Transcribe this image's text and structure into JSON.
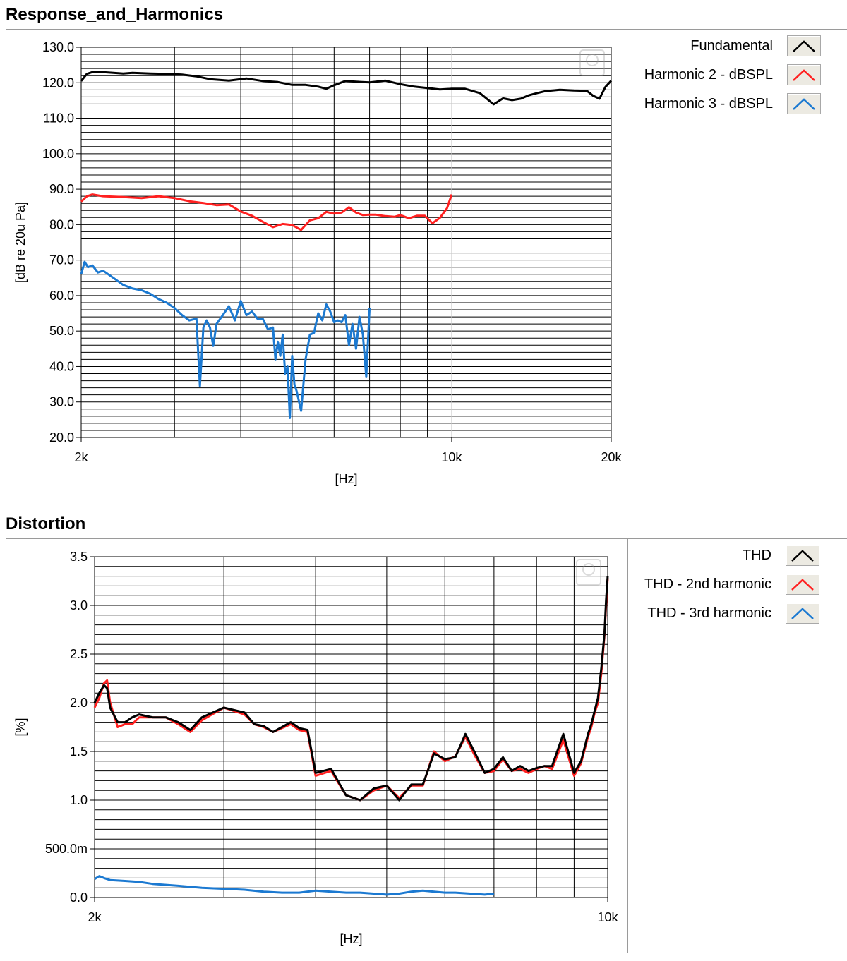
{
  "panels": [
    {
      "title": "Response_and_Harmonics"
    },
    {
      "title": "Distortion"
    }
  ],
  "chart_data": [
    {
      "type": "line",
      "x_scale": "log",
      "xlim": [
        2000,
        20000
      ],
      "ylim": [
        20,
        130
      ],
      "xlabel": "[Hz]",
      "ylabel": "[dB re 20u Pa]",
      "xticks": [
        {
          "v": 2000,
          "label": "2k"
        },
        {
          "v": 10000,
          "label": "10k"
        },
        {
          "v": 20000,
          "label": "20k"
        }
      ],
      "yticks": [
        {
          "v": 130,
          "label": "130.0"
        },
        {
          "v": 120,
          "label": "120.0"
        },
        {
          "v": 110,
          "label": "110.0"
        },
        {
          "v": 100,
          "label": "100.0"
        },
        {
          "v": 90,
          "label": "90.0"
        },
        {
          "v": 80,
          "label": "80.0"
        },
        {
          "v": 70,
          "label": "70.0"
        },
        {
          "v": 60,
          "label": "60.0"
        },
        {
          "v": 50,
          "label": "50.0"
        },
        {
          "v": 40,
          "label": "40.0"
        },
        {
          "v": 30,
          "label": "30.0"
        },
        {
          "v": 20,
          "label": "20.0"
        }
      ],
      "ygrid_step": 2,
      "legend_position": "right",
      "series": [
        {
          "name": "Fundamental",
          "color": "#000000",
          "x": [
            2000,
            2050,
            2100,
            2200,
            2300,
            2400,
            2500,
            2700,
            2900,
            3100,
            3300,
            3500,
            3800,
            4100,
            4400,
            4700,
            5000,
            5300,
            5600,
            5800,
            6000,
            6300,
            6600,
            7000,
            7500,
            8000,
            8500,
            9000,
            9500,
            10000,
            10600,
            11300,
            12000,
            12500,
            13000,
            13500,
            14000,
            14500,
            15000,
            16000,
            17000,
            18000,
            18500,
            19000,
            19500,
            20000
          ],
          "y": [
            120.5,
            122.5,
            123,
            123,
            122.8,
            122.6,
            122.8,
            122.6,
            122.5,
            122.3,
            121.8,
            121,
            120.6,
            121.2,
            120.5,
            120.2,
            119.4,
            119.4,
            118.9,
            118.3,
            119.3,
            120.5,
            120.3,
            120.1,
            120.6,
            119.6,
            118.9,
            118.5,
            118.1,
            118.3,
            118.3,
            117.1,
            113.9,
            115.6,
            115.1,
            115.5,
            116.5,
            117.1,
            117.6,
            118,
            117.8,
            117.7,
            116.3,
            115.5,
            118.8,
            120.6
          ]
        },
        {
          "name": "Harmonic 2 - dBSPL",
          "color": "#ff2020",
          "x": [
            2000,
            2050,
            2100,
            2200,
            2400,
            2600,
            2800,
            3000,
            3200,
            3400,
            3600,
            3800,
            4000,
            4200,
            4400,
            4600,
            4800,
            5000,
            5200,
            5400,
            5600,
            5800,
            6000,
            6200,
            6400,
            6600,
            6800,
            7000,
            7200,
            7500,
            7800,
            8000,
            8300,
            8600,
            8900,
            9200,
            9500,
            9800,
            10000
          ],
          "y": [
            86.5,
            88,
            88.5,
            88,
            87.8,
            87.5,
            88,
            87.5,
            86.6,
            86.1,
            85.5,
            85.7,
            83.7,
            82.5,
            80.8,
            79.3,
            80.2,
            79.9,
            78.5,
            81.2,
            81.8,
            83.6,
            83.1,
            83.4,
            84.9,
            83.4,
            82.7,
            82.8,
            82.8,
            82.4,
            82.2,
            82.7,
            81.8,
            82.5,
            82.5,
            80.4,
            81.9,
            84.6,
            88.5
          ]
        },
        {
          "name": "Harmonic 3 - dBSPL",
          "color": "#1b79d1",
          "x": [
            2000,
            2030,
            2060,
            2100,
            2150,
            2200,
            2300,
            2400,
            2500,
            2600,
            2700,
            2800,
            2900,
            3000,
            3100,
            3200,
            3300,
            3350,
            3400,
            3450,
            3500,
            3550,
            3600,
            3700,
            3800,
            3900,
            4000,
            4100,
            4200,
            4300,
            4400,
            4500,
            4600,
            4650,
            4700,
            4750,
            4800,
            4850,
            4900,
            4950,
            5000,
            5050,
            5100,
            5200,
            5300,
            5400,
            5500,
            5600,
            5700,
            5800,
            5900,
            6000,
            6100,
            6200,
            6300,
            6400,
            6500,
            6600,
            6700,
            6800,
            6900,
            7000
          ],
          "y": [
            66,
            69.5,
            68,
            68.5,
            66.5,
            67,
            65,
            63,
            62,
            61.5,
            60.5,
            59,
            58,
            56.5,
            54.5,
            53,
            53.5,
            34.5,
            51,
            53,
            51,
            45.8,
            52,
            54.5,
            57,
            53,
            58.5,
            54.5,
            55.5,
            53.5,
            53.5,
            50.5,
            51,
            42,
            47,
            43,
            49,
            38,
            40,
            25.5,
            43,
            35,
            33,
            27.5,
            42,
            49,
            49.5,
            55,
            53,
            57.5,
            55.5,
            52.5,
            53,
            52.5,
            54.5,
            46,
            52,
            45,
            54,
            49,
            37,
            56.5
          ]
        }
      ]
    },
    {
      "type": "line",
      "x_scale": "log",
      "xlim": [
        2000,
        10000
      ],
      "ylim": [
        0,
        3.5
      ],
      "xlabel": "[Hz]",
      "ylabel": "[%]",
      "xticks": [
        {
          "v": 2000,
          "label": "2k"
        },
        {
          "v": 10000,
          "label": "10k"
        }
      ],
      "yticks": [
        {
          "v": 3.5,
          "label": "3.5"
        },
        {
          "v": 3.0,
          "label": "3.0"
        },
        {
          "v": 2.5,
          "label": "2.5"
        },
        {
          "v": 2.0,
          "label": "2.0"
        },
        {
          "v": 1.5,
          "label": "1.5"
        },
        {
          "v": 1.0,
          "label": "1.0"
        },
        {
          "v": 0.5,
          "label": "500.0m"
        },
        {
          "v": 0,
          "label": "0.0"
        }
      ],
      "ygrid_step": 0.1,
      "legend_position": "right",
      "series": [
        {
          "name": "THD - 2nd harmonic",
          "color": "#ff2020",
          "x": [
            2000,
            2030,
            2060,
            2080,
            2100,
            2150,
            2200,
            2250,
            2300,
            2400,
            2500,
            2600,
            2700,
            2800,
            3000,
            3200,
            3300,
            3400,
            3500,
            3700,
            3800,
            3900,
            4000,
            4200,
            4400,
            4600,
            4800,
            5000,
            5200,
            5400,
            5600,
            5800,
            6000,
            6200,
            6400,
            6600,
            6800,
            7000,
            7200,
            7400,
            7600,
            7800,
            8000,
            8200,
            8400,
            8700,
            9000,
            9200,
            9400,
            9500,
            9600,
            9700,
            9800,
            9900,
            9950,
            10000
          ],
          "y": [
            1.95,
            2.05,
            2.2,
            2.23,
            2.0,
            1.75,
            1.78,
            1.78,
            1.85,
            1.85,
            1.85,
            1.78,
            1.7,
            1.82,
            1.95,
            1.88,
            1.78,
            1.75,
            1.7,
            1.78,
            1.72,
            1.7,
            1.25,
            1.3,
            1.05,
            1.0,
            1.1,
            1.15,
            1.02,
            1.15,
            1.15,
            1.5,
            1.4,
            1.45,
            1.65,
            1.45,
            1.28,
            1.3,
            1.42,
            1.3,
            1.32,
            1.28,
            1.32,
            1.35,
            1.32,
            1.62,
            1.25,
            1.38,
            1.65,
            1.75,
            1.9,
            2.0,
            2.3,
            2.7,
            3.0,
            3.28
          ]
        },
        {
          "name": "THD",
          "color": "#000000",
          "x": [
            2000,
            2030,
            2060,
            2080,
            2100,
            2150,
            2200,
            2250,
            2300,
            2400,
            2500,
            2600,
            2700,
            2800,
            3000,
            3200,
            3300,
            3400,
            3500,
            3700,
            3800,
            3900,
            4000,
            4200,
            4400,
            4600,
            4800,
            5000,
            5200,
            5400,
            5600,
            5800,
            6000,
            6200,
            6400,
            6600,
            6800,
            7000,
            7200,
            7400,
            7600,
            7800,
            8000,
            8200,
            8400,
            8700,
            9000,
            9200,
            9400,
            9500,
            9600,
            9700,
            9800,
            9900,
            9950,
            10000
          ],
          "y": [
            2.0,
            2.1,
            2.18,
            2.15,
            1.95,
            1.8,
            1.8,
            1.85,
            1.88,
            1.85,
            1.85,
            1.8,
            1.72,
            1.85,
            1.95,
            1.9,
            1.78,
            1.76,
            1.7,
            1.8,
            1.74,
            1.72,
            1.28,
            1.32,
            1.05,
            1.0,
            1.12,
            1.15,
            1.0,
            1.16,
            1.16,
            1.48,
            1.42,
            1.44,
            1.68,
            1.48,
            1.28,
            1.32,
            1.44,
            1.3,
            1.35,
            1.3,
            1.33,
            1.35,
            1.35,
            1.68,
            1.28,
            1.4,
            1.68,
            1.78,
            1.92,
            2.05,
            2.35,
            2.72,
            3.05,
            3.3
          ]
        },
        {
          "name": "THD - 3rd harmonic",
          "color": "#1b79d1",
          "x": [
            2000,
            2030,
            2060,
            2100,
            2200,
            2300,
            2400,
            2600,
            2800,
            3000,
            3200,
            3400,
            3600,
            3800,
            4000,
            4200,
            4400,
            4600,
            4800,
            5000,
            5200,
            5400,
            5600,
            5800,
            6000,
            6200,
            6500,
            6800,
            7000
          ],
          "y": [
            0.19,
            0.22,
            0.2,
            0.18,
            0.17,
            0.16,
            0.14,
            0.12,
            0.1,
            0.09,
            0.08,
            0.06,
            0.05,
            0.05,
            0.07,
            0.06,
            0.05,
            0.05,
            0.04,
            0.03,
            0.04,
            0.06,
            0.07,
            0.06,
            0.05,
            0.05,
            0.04,
            0.03,
            0.04
          ]
        }
      ]
    }
  ]
}
